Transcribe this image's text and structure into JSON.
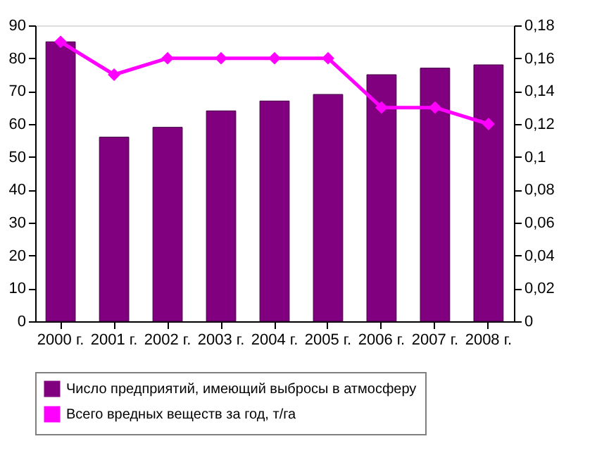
{
  "chart_data": {
    "type": "bar",
    "categories": [
      "2000 г.",
      "2001 г.",
      "2002 г.",
      "2003 г.",
      "2004 г.",
      "2005 г.",
      "2006 г.",
      "2007 г.",
      "2008 г."
    ],
    "series": [
      {
        "name": "Число предприятий, имеющий выбросы в атмосферу",
        "color": "#800080",
        "values": [
          85,
          56,
          59,
          64,
          67,
          69,
          75,
          77,
          78
        ]
      },
      {
        "name": "Всего вредных веществ за год, т/га",
        "color": "#ff00ff",
        "type": "line",
        "axis": "y2",
        "marker": "diamond",
        "line_style": "solid",
        "values": [
          0.17,
          0.15,
          0.16,
          0.16,
          0.16,
          0.16,
          0.13,
          0.13,
          0.12
        ]
      }
    ],
    "ylim": [
      0,
      90
    ],
    "yticks": [
      0,
      10,
      20,
      30,
      40,
      50,
      60,
      70,
      80,
      90
    ],
    "y2lim": [
      0,
      0.18
    ],
    "y2ticks": [
      0,
      {
        "value": 0.02,
        "label": "0,02"
      },
      {
        "value": 0.04,
        "label": "0,04"
      },
      {
        "value": 0.06,
        "label": "0,06"
      },
      {
        "value": 0.08,
        "label": "0,08"
      },
      {
        "value": 0.1,
        "label": "0,1"
      },
      {
        "value": 0.12,
        "label": "0,12"
      },
      {
        "value": 0.14,
        "label": "0,14"
      },
      {
        "value": 0.16,
        "label": "0,16"
      },
      {
        "value": 0.18,
        "label": "0,18"
      }
    ],
    "grid": false,
    "legend": "bottom"
  }
}
